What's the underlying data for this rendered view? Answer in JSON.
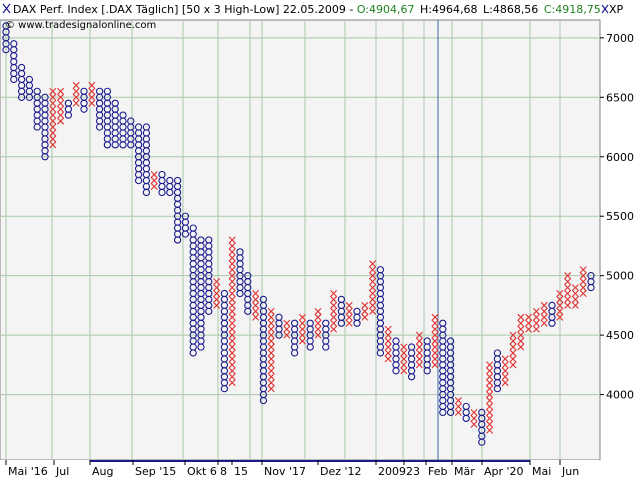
{
  "header": {
    "title": "DAX Perf. Index [.DAX  Täglich] [50 x 3 High-Low] 22.05.2009 - ",
    "open": "O:4904,67",
    "high": "H:4964,68",
    "low": "L:4868,56",
    "close": "C:4918,75",
    "type_label": "XP",
    "watermark": "© www.tradesignalonline.com"
  },
  "colors": {
    "x_col": "#e03030",
    "o_col": "#1a1a8c",
    "grid": "#a8c8a8",
    "plot_bg": "#f4f4f4",
    "highlight": "#3a6aa0",
    "close_open": "#208020"
  },
  "chart_data": {
    "type": "point-and-figure",
    "box_size": 50,
    "reversal": 3,
    "ylim": [
      3450,
      7150
    ],
    "yticks": [
      4000,
      4500,
      5000,
      5500,
      6000,
      6500,
      7000
    ],
    "x_ticks": [
      "Mai '16",
      "Jul",
      "Aug",
      "Sep '15",
      "Okt 6",
      "8",
      "15",
      "Nov '17",
      "Dez '12",
      "2009",
      "23",
      "Feb",
      "Mär",
      "Apr '20",
      "Mai",
      "Jun"
    ],
    "columns": [
      {
        "t": "O",
        "hi": 7100,
        "lo": 6900
      },
      {
        "t": "O",
        "hi": 6950,
        "lo": 6650
      },
      {
        "t": "O",
        "hi": 6750,
        "lo": 6500
      },
      {
        "t": "O",
        "hi": 6650,
        "lo": 6500
      },
      {
        "t": "O",
        "hi": 6550,
        "lo": 6250
      },
      {
        "t": "O",
        "hi": 6500,
        "lo": 6000
      },
      {
        "t": "X",
        "hi": 6550,
        "lo": 6100
      },
      {
        "t": "X",
        "hi": 6550,
        "lo": 6300
      },
      {
        "t": "O",
        "hi": 6450,
        "lo": 6350
      },
      {
        "t": "X",
        "hi": 6600,
        "lo": 6450
      },
      {
        "t": "O",
        "hi": 6550,
        "lo": 6400
      },
      {
        "t": "X",
        "hi": 6600,
        "lo": 6450
      },
      {
        "t": "O",
        "hi": 6550,
        "lo": 6250
      },
      {
        "t": "O",
        "hi": 6550,
        "lo": 6100
      },
      {
        "t": "O",
        "hi": 6450,
        "lo": 6100
      },
      {
        "t": "O",
        "hi": 6350,
        "lo": 6100
      },
      {
        "t": "O",
        "hi": 6300,
        "lo": 6100
      },
      {
        "t": "O",
        "hi": 6250,
        "lo": 5800
      },
      {
        "t": "O",
        "hi": 6250,
        "lo": 5700
      },
      {
        "t": "X",
        "hi": 5850,
        "lo": 5750
      },
      {
        "t": "O",
        "hi": 5850,
        "lo": 5700
      },
      {
        "t": "O",
        "hi": 5800,
        "lo": 5700
      },
      {
        "t": "O",
        "hi": 5800,
        "lo": 5300
      },
      {
        "t": "O",
        "hi": 5500,
        "lo": 5350
      },
      {
        "t": "O",
        "hi": 5400,
        "lo": 4350
      },
      {
        "t": "O",
        "hi": 5300,
        "lo": 4400
      },
      {
        "t": "O",
        "hi": 5300,
        "lo": 4700
      },
      {
        "t": "X",
        "hi": 4950,
        "lo": 4750
      },
      {
        "t": "O",
        "hi": 4850,
        "lo": 4050
      },
      {
        "t": "X",
        "hi": 5300,
        "lo": 4100
      },
      {
        "t": "O",
        "hi": 5200,
        "lo": 4850
      },
      {
        "t": "O",
        "hi": 5000,
        "lo": 4700
      },
      {
        "t": "X",
        "hi": 4850,
        "lo": 4650
      },
      {
        "t": "O",
        "hi": 4800,
        "lo": 3950
      },
      {
        "t": "X",
        "hi": 4700,
        "lo": 4050
      },
      {
        "t": "O",
        "hi": 4650,
        "lo": 4500
      },
      {
        "t": "X",
        "hi": 4600,
        "lo": 4500
      },
      {
        "t": "O",
        "hi": 4600,
        "lo": 4350
      },
      {
        "t": "X",
        "hi": 4650,
        "lo": 4450
      },
      {
        "t": "O",
        "hi": 4600,
        "lo": 4400
      },
      {
        "t": "X",
        "hi": 4700,
        "lo": 4500
      },
      {
        "t": "O",
        "hi": 4600,
        "lo": 4400
      },
      {
        "t": "X",
        "hi": 4850,
        "lo": 4550
      },
      {
        "t": "O",
        "hi": 4800,
        "lo": 4600
      },
      {
        "t": "X",
        "hi": 4750,
        "lo": 4600
      },
      {
        "t": "O",
        "hi": 4700,
        "lo": 4600
      },
      {
        "t": "X",
        "hi": 4750,
        "lo": 4650
      },
      {
        "t": "X",
        "hi": 5100,
        "lo": 4700
      },
      {
        "t": "O",
        "hi": 5050,
        "lo": 4350
      },
      {
        "t": "X",
        "hi": 4550,
        "lo": 4300
      },
      {
        "t": "O",
        "hi": 4450,
        "lo": 4200
      },
      {
        "t": "X",
        "hi": 4400,
        "lo": 4200
      },
      {
        "t": "O",
        "hi": 4400,
        "lo": 4150
      },
      {
        "t": "X",
        "hi": 4500,
        "lo": 4250
      },
      {
        "t": "O",
        "hi": 4450,
        "lo": 4200
      },
      {
        "t": "X",
        "hi": 4650,
        "lo": 4250
      },
      {
        "t": "O",
        "hi": 4600,
        "lo": 3850
      },
      {
        "t": "O",
        "hi": 4450,
        "lo": 3850
      },
      {
        "t": "X",
        "hi": 3950,
        "lo": 3850
      },
      {
        "t": "O",
        "hi": 3900,
        "lo": 3800
      },
      {
        "t": "X",
        "hi": 3850,
        "lo": 3750
      },
      {
        "t": "O",
        "hi": 3850,
        "lo": 3600
      },
      {
        "t": "X",
        "hi": 4250,
        "lo": 3700
      },
      {
        "t": "O",
        "hi": 4350,
        "lo": 4050
      },
      {
        "t": "X",
        "hi": 4300,
        "lo": 4100
      },
      {
        "t": "X",
        "hi": 4500,
        "lo": 4250
      },
      {
        "t": "X",
        "hi": 4650,
        "lo": 4400
      },
      {
        "t": "X",
        "hi": 4650,
        "lo": 4550
      },
      {
        "t": "X",
        "hi": 4700,
        "lo": 4550
      },
      {
        "t": "X",
        "hi": 4750,
        "lo": 4600
      },
      {
        "t": "O",
        "hi": 4750,
        "lo": 4600
      },
      {
        "t": "X",
        "hi": 4850,
        "lo": 4650
      },
      {
        "t": "X",
        "hi": 5000,
        "lo": 4750
      },
      {
        "t": "X",
        "hi": 4900,
        "lo": 4750
      },
      {
        "t": "X",
        "hi": 5050,
        "lo": 4850
      },
      {
        "t": "O",
        "hi": 5000,
        "lo": 4900
      }
    ]
  }
}
